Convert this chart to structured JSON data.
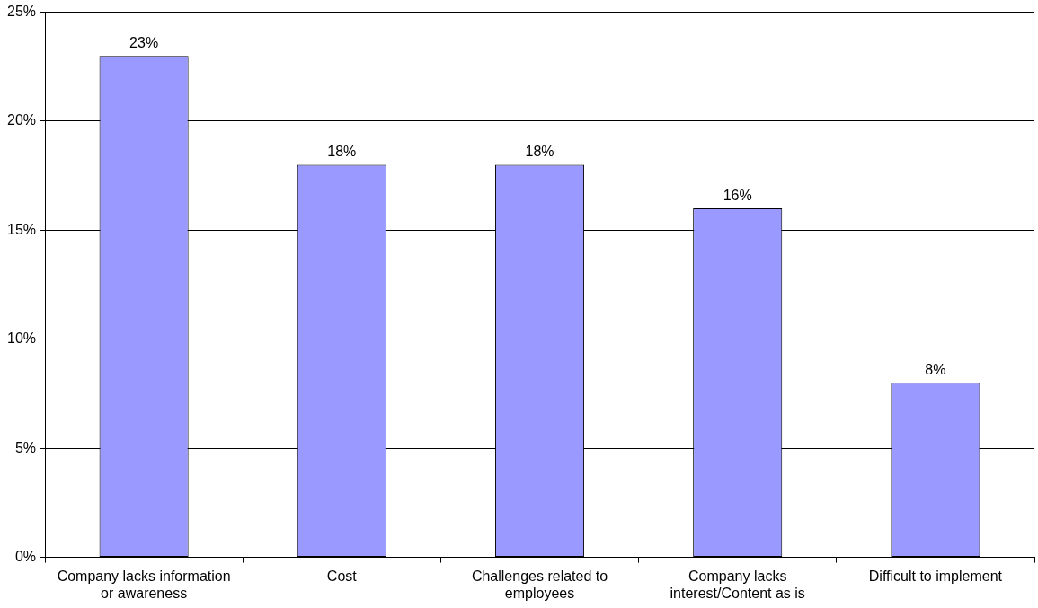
{
  "chart_data": {
    "type": "bar",
    "categories": [
      "Company lacks information or awareness",
      "Cost",
      "Challenges related to employees",
      "Company lacks interest/Content as is",
      "Difficult to implement"
    ],
    "values": [
      23,
      18,
      18,
      16,
      8
    ],
    "value_labels": [
      "23%",
      "18%",
      "18%",
      "16%",
      "8%"
    ],
    "color": "#9999ff",
    "ylim": [
      0,
      25
    ],
    "yticks": [
      {
        "value": 0,
        "label": "0%"
      },
      {
        "value": 5,
        "label": "5%"
      },
      {
        "value": 10,
        "label": "10%"
      },
      {
        "value": 15,
        "label": "15%"
      },
      {
        "value": 20,
        "label": "20%"
      },
      {
        "value": 25,
        "label": "25%"
      }
    ],
    "grid": "y",
    "legend": false
  }
}
